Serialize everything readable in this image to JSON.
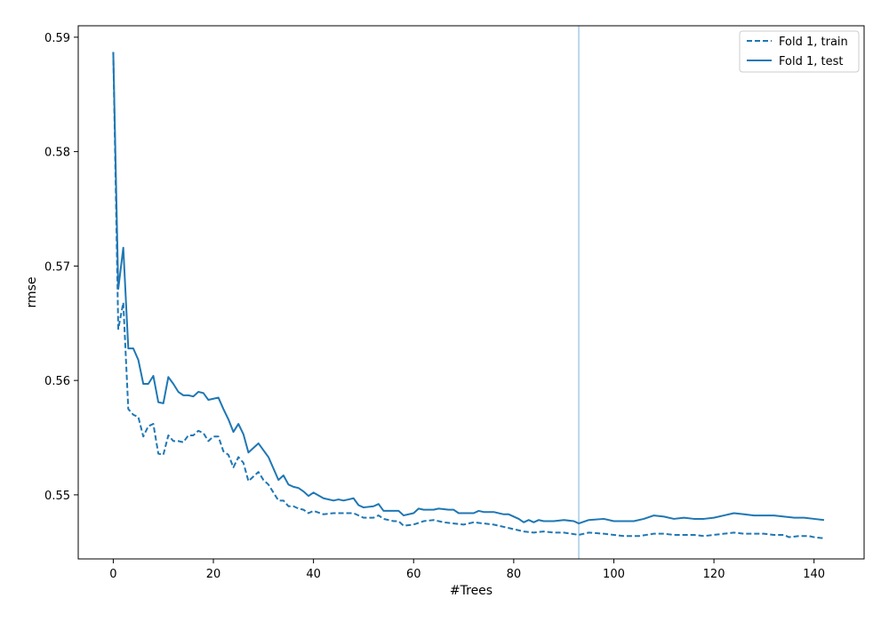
{
  "chart_data": {
    "type": "line",
    "xlabel": "#Trees",
    "ylabel": "rmse",
    "xlim": [
      -7,
      150
    ],
    "ylim": [
      0.5444,
      0.591
    ],
    "x_ticks": [
      0,
      20,
      40,
      60,
      80,
      100,
      120,
      140
    ],
    "y_ticks": [
      0.55,
      0.56,
      0.57,
      0.58,
      0.59
    ],
    "x_tick_labels": [
      "0",
      "20",
      "40",
      "60",
      "80",
      "100",
      "120",
      "140"
    ],
    "y_tick_labels": [
      "0.55",
      "0.56",
      "0.57",
      "0.58",
      "0.59"
    ],
    "grid": false,
    "legend_position": "top-right",
    "vline_x": 93,
    "color": "#1f77b4",
    "vline_color": "#a6cbe6",
    "series": [
      {
        "name": "Fold 1, train",
        "style": "dashed",
        "points": [
          [
            0,
            0.5887
          ],
          [
            1,
            0.5645
          ],
          [
            2,
            0.5668
          ],
          [
            3,
            0.5575
          ],
          [
            4,
            0.557
          ],
          [
            5,
            0.5568
          ],
          [
            6,
            0.5551
          ],
          [
            7,
            0.556
          ],
          [
            8,
            0.5562
          ],
          [
            9,
            0.5536
          ],
          [
            10,
            0.5535
          ],
          [
            11,
            0.5552
          ],
          [
            12,
            0.5547
          ],
          [
            13,
            0.5547
          ],
          [
            14,
            0.5546
          ],
          [
            15,
            0.5552
          ],
          [
            16,
            0.5552
          ],
          [
            17,
            0.5556
          ],
          [
            18,
            0.5554
          ],
          [
            19,
            0.5547
          ],
          [
            20,
            0.5551
          ],
          [
            21,
            0.5551
          ],
          [
            22,
            0.5538
          ],
          [
            23,
            0.5535
          ],
          [
            24,
            0.5524
          ],
          [
            25,
            0.5533
          ],
          [
            26,
            0.5528
          ],
          [
            27,
            0.5512
          ],
          [
            28,
            0.5516
          ],
          [
            29,
            0.552
          ],
          [
            30,
            0.5513
          ],
          [
            31,
            0.5509
          ],
          [
            32,
            0.5502
          ],
          [
            33,
            0.5495
          ],
          [
            34,
            0.5495
          ],
          [
            35,
            0.549
          ],
          [
            36,
            0.549
          ],
          [
            37,
            0.5488
          ],
          [
            38,
            0.5487
          ],
          [
            39,
            0.5484
          ],
          [
            40,
            0.5486
          ],
          [
            42,
            0.5483
          ],
          [
            44,
            0.5484
          ],
          [
            46,
            0.5484
          ],
          [
            48,
            0.5484
          ],
          [
            50,
            0.548
          ],
          [
            52,
            0.548
          ],
          [
            53,
            0.5482
          ],
          [
            54,
            0.5479
          ],
          [
            56,
            0.5477
          ],
          [
            57,
            0.5477
          ],
          [
            58,
            0.5473
          ],
          [
            60,
            0.5474
          ],
          [
            62,
            0.5477
          ],
          [
            64,
            0.5478
          ],
          [
            66,
            0.5476
          ],
          [
            68,
            0.5475
          ],
          [
            70,
            0.5474
          ],
          [
            72,
            0.5476
          ],
          [
            74,
            0.5475
          ],
          [
            76,
            0.5474
          ],
          [
            78,
            0.5472
          ],
          [
            80,
            0.547
          ],
          [
            82,
            0.5468
          ],
          [
            84,
            0.5467
          ],
          [
            86,
            0.5468
          ],
          [
            88,
            0.5467
          ],
          [
            90,
            0.5467
          ],
          [
            93,
            0.5465
          ],
          [
            95,
            0.5467
          ],
          [
            98,
            0.5466
          ],
          [
            100,
            0.5465
          ],
          [
            102,
            0.5464
          ],
          [
            105,
            0.5464
          ],
          [
            108,
            0.5466
          ],
          [
            110,
            0.5466
          ],
          [
            112,
            0.5465
          ],
          [
            114,
            0.5465
          ],
          [
            116,
            0.5465
          ],
          [
            118,
            0.5464
          ],
          [
            120,
            0.5465
          ],
          [
            122,
            0.5466
          ],
          [
            124,
            0.5467
          ],
          [
            126,
            0.5466
          ],
          [
            128,
            0.5466
          ],
          [
            130,
            0.5466
          ],
          [
            132,
            0.5465
          ],
          [
            134,
            0.5465
          ],
          [
            135,
            0.5463
          ],
          [
            137,
            0.5464
          ],
          [
            139,
            0.5464
          ],
          [
            140,
            0.5463
          ],
          [
            142,
            0.5462
          ]
        ]
      },
      {
        "name": "Fold 1, test",
        "style": "solid",
        "points": [
          [
            0,
            0.5887
          ],
          [
            1,
            0.568
          ],
          [
            2,
            0.5716
          ],
          [
            3,
            0.5628
          ],
          [
            4,
            0.5628
          ],
          [
            5,
            0.5618
          ],
          [
            6,
            0.5597
          ],
          [
            7,
            0.5597
          ],
          [
            8,
            0.5604
          ],
          [
            9,
            0.5581
          ],
          [
            10,
            0.558
          ],
          [
            11,
            0.5603
          ],
          [
            12,
            0.5597
          ],
          [
            13,
            0.559
          ],
          [
            14,
            0.5587
          ],
          [
            15,
            0.5587
          ],
          [
            16,
            0.5586
          ],
          [
            17,
            0.559
          ],
          [
            18,
            0.5589
          ],
          [
            19,
            0.5583
          ],
          [
            20,
            0.5584
          ],
          [
            21,
            0.5585
          ],
          [
            22,
            0.5575
          ],
          [
            23,
            0.5566
          ],
          [
            24,
            0.5555
          ],
          [
            25,
            0.5562
          ],
          [
            26,
            0.5553
          ],
          [
            27,
            0.5537
          ],
          [
            28,
            0.5541
          ],
          [
            29,
            0.5545
          ],
          [
            30,
            0.5539
          ],
          [
            31,
            0.5533
          ],
          [
            32,
            0.5523
          ],
          [
            33,
            0.5513
          ],
          [
            34,
            0.5517
          ],
          [
            35,
            0.5509
          ],
          [
            36,
            0.5507
          ],
          [
            37,
            0.5506
          ],
          [
            38,
            0.5503
          ],
          [
            39,
            0.5499
          ],
          [
            40,
            0.5502
          ],
          [
            42,
            0.5497
          ],
          [
            44,
            0.5495
          ],
          [
            45,
            0.5496
          ],
          [
            46,
            0.5495
          ],
          [
            47,
            0.5496
          ],
          [
            48,
            0.5497
          ],
          [
            49,
            0.5491
          ],
          [
            50,
            0.5489
          ],
          [
            52,
            0.549
          ],
          [
            53,
            0.5492
          ],
          [
            54,
            0.5486
          ],
          [
            56,
            0.5486
          ],
          [
            57,
            0.5486
          ],
          [
            58,
            0.5482
          ],
          [
            60,
            0.5484
          ],
          [
            61,
            0.5488
          ],
          [
            62,
            0.5487
          ],
          [
            64,
            0.5487
          ],
          [
            65,
            0.5488
          ],
          [
            67,
            0.5487
          ],
          [
            68,
            0.5487
          ],
          [
            69,
            0.5484
          ],
          [
            72,
            0.5484
          ],
          [
            73,
            0.5486
          ],
          [
            74,
            0.5485
          ],
          [
            76,
            0.5485
          ],
          [
            78,
            0.5483
          ],
          [
            79,
            0.5483
          ],
          [
            81,
            0.5479
          ],
          [
            82,
            0.5476
          ],
          [
            83,
            0.5478
          ],
          [
            84,
            0.5476
          ],
          [
            85,
            0.5478
          ],
          [
            86,
            0.5477
          ],
          [
            88,
            0.5477
          ],
          [
            90,
            0.5478
          ],
          [
            92,
            0.5477
          ],
          [
            93,
            0.5475
          ],
          [
            95,
            0.5478
          ],
          [
            98,
            0.5479
          ],
          [
            100,
            0.5477
          ],
          [
            102,
            0.5477
          ],
          [
            104,
            0.5477
          ],
          [
            106,
            0.5479
          ],
          [
            108,
            0.5482
          ],
          [
            110,
            0.5481
          ],
          [
            112,
            0.5479
          ],
          [
            114,
            0.548
          ],
          [
            116,
            0.5479
          ],
          [
            118,
            0.5479
          ],
          [
            120,
            0.548
          ],
          [
            122,
            0.5482
          ],
          [
            124,
            0.5484
          ],
          [
            126,
            0.5483
          ],
          [
            128,
            0.5482
          ],
          [
            130,
            0.5482
          ],
          [
            132,
            0.5482
          ],
          [
            134,
            0.5481
          ],
          [
            136,
            0.548
          ],
          [
            138,
            0.548
          ],
          [
            140,
            0.5479
          ],
          [
            142,
            0.5478
          ]
        ]
      }
    ]
  }
}
